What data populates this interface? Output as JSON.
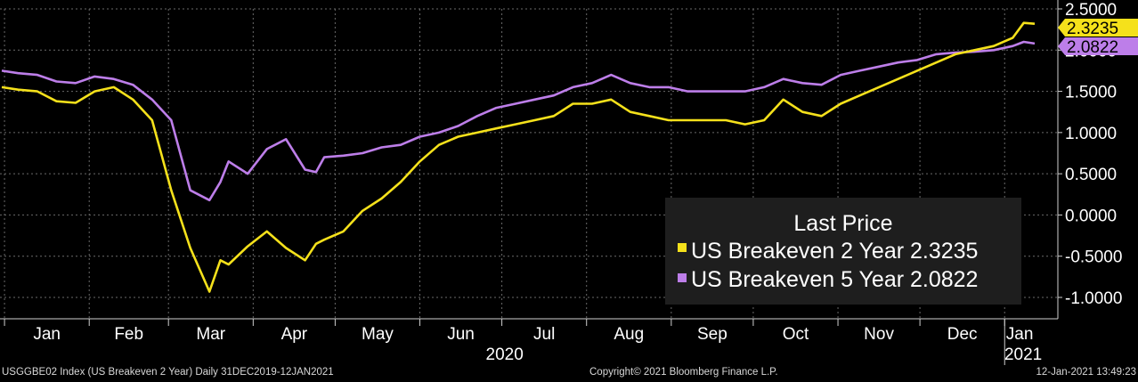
{
  "chart_data": {
    "type": "line",
    "y_range": [
      -1.2,
      2.5
    ],
    "y_ticks": [
      "2.5000",
      "2.0000",
      "1.5000",
      "1.0000",
      "0.5000",
      "0.0000",
      "-0.5000",
      "-1.0000"
    ],
    "y_tick_values": [
      2.5,
      2.0,
      1.5,
      1.0,
      0.5,
      0.0,
      -0.5,
      -1.0
    ],
    "x_range": [
      "2019-12-31",
      "2021-01-12"
    ],
    "x_ticks": [
      "Jan",
      "Feb",
      "Mar",
      "Apr",
      "May",
      "Jun",
      "Jul",
      "Aug",
      "Sep",
      "Oct",
      "Nov",
      "Dec",
      "Jan"
    ],
    "x_year_labels": [
      "2020",
      "2021"
    ],
    "legend": {
      "title": "Last Price",
      "entries": [
        "US Breakeven 2 Year 2.3235",
        "US Breakeven 5 Year 2.0822"
      ],
      "placement": "bottom-right"
    },
    "last_value_tags": [
      "2.3235",
      "2.0822"
    ],
    "series": [
      {
        "name": "US Breakeven 2 Year",
        "color": "#f5e11b",
        "x": [
          "2019-12-31",
          "2020-01-06",
          "2020-01-13",
          "2020-01-20",
          "2020-01-27",
          "2020-02-03",
          "2020-02-10",
          "2020-02-17",
          "2020-02-24",
          "2020-03-02",
          "2020-03-09",
          "2020-03-16",
          "2020-03-20",
          "2020-03-23",
          "2020-03-30",
          "2020-04-06",
          "2020-04-13",
          "2020-04-20",
          "2020-04-24",
          "2020-04-27",
          "2020-05-04",
          "2020-05-11",
          "2020-05-18",
          "2020-05-25",
          "2020-06-01",
          "2020-06-08",
          "2020-06-15",
          "2020-06-22",
          "2020-06-29",
          "2020-07-06",
          "2020-07-13",
          "2020-07-20",
          "2020-07-27",
          "2020-08-03",
          "2020-08-10",
          "2020-08-17",
          "2020-08-24",
          "2020-08-31",
          "2020-09-07",
          "2020-09-14",
          "2020-09-21",
          "2020-09-28",
          "2020-10-05",
          "2020-10-12",
          "2020-10-19",
          "2020-10-26",
          "2020-11-02",
          "2020-11-09",
          "2020-11-16",
          "2020-11-23",
          "2020-11-30",
          "2020-12-07",
          "2020-12-14",
          "2020-12-21",
          "2020-12-28",
          "2021-01-04",
          "2021-01-08",
          "2021-01-12"
        ],
        "y": [
          1.55,
          1.52,
          1.5,
          1.38,
          1.36,
          1.5,
          1.55,
          1.4,
          1.15,
          0.3,
          -0.4,
          -0.93,
          -0.55,
          -0.6,
          -0.38,
          -0.2,
          -0.4,
          -0.55,
          -0.35,
          -0.3,
          -0.2,
          0.05,
          0.2,
          0.4,
          0.65,
          0.85,
          0.95,
          1.0,
          1.05,
          1.1,
          1.15,
          1.2,
          1.35,
          1.35,
          1.4,
          1.25,
          1.2,
          1.15,
          1.15,
          1.15,
          1.15,
          1.1,
          1.15,
          1.4,
          1.25,
          1.2,
          1.35,
          1.45,
          1.55,
          1.65,
          1.75,
          1.85,
          1.95,
          2.0,
          2.05,
          2.15,
          2.33,
          2.32
        ]
      },
      {
        "name": "US Breakeven 5 Year",
        "color": "#bd7ee9",
        "x": [
          "2019-12-31",
          "2020-01-06",
          "2020-01-13",
          "2020-01-20",
          "2020-01-27",
          "2020-02-03",
          "2020-02-10",
          "2020-02-17",
          "2020-02-24",
          "2020-03-02",
          "2020-03-09",
          "2020-03-16",
          "2020-03-20",
          "2020-03-23",
          "2020-03-30",
          "2020-04-06",
          "2020-04-13",
          "2020-04-20",
          "2020-04-24",
          "2020-04-27",
          "2020-05-04",
          "2020-05-11",
          "2020-05-18",
          "2020-05-25",
          "2020-06-01",
          "2020-06-08",
          "2020-06-15",
          "2020-06-22",
          "2020-06-29",
          "2020-07-06",
          "2020-07-13",
          "2020-07-20",
          "2020-07-27",
          "2020-08-03",
          "2020-08-10",
          "2020-08-17",
          "2020-08-24",
          "2020-08-31",
          "2020-09-07",
          "2020-09-14",
          "2020-09-21",
          "2020-09-28",
          "2020-10-05",
          "2020-10-12",
          "2020-10-19",
          "2020-10-26",
          "2020-11-02",
          "2020-11-09",
          "2020-11-16",
          "2020-11-23",
          "2020-11-30",
          "2020-12-07",
          "2020-12-14",
          "2020-12-21",
          "2020-12-28",
          "2021-01-04",
          "2021-01-08",
          "2021-01-12"
        ],
        "y": [
          1.75,
          1.72,
          1.7,
          1.62,
          1.6,
          1.68,
          1.65,
          1.58,
          1.4,
          1.15,
          0.3,
          0.18,
          0.4,
          0.65,
          0.5,
          0.8,
          0.92,
          0.55,
          0.52,
          0.7,
          0.72,
          0.75,
          0.82,
          0.85,
          0.95,
          1.0,
          1.08,
          1.2,
          1.3,
          1.35,
          1.4,
          1.45,
          1.55,
          1.6,
          1.7,
          1.6,
          1.55,
          1.55,
          1.5,
          1.5,
          1.5,
          1.5,
          1.55,
          1.65,
          1.6,
          1.58,
          1.7,
          1.75,
          1.8,
          1.85,
          1.88,
          1.95,
          1.97,
          1.98,
          2.0,
          2.05,
          2.1,
          2.08
        ]
      }
    ]
  },
  "footer": {
    "left": "USGGBE02 Index (US Breakeven 2 Year)  Daily 31DEC2019-12JAN2021",
    "center": "Copyright© 2021 Bloomberg Finance L.P.",
    "right": "12-Jan-2021 13:49:23"
  }
}
